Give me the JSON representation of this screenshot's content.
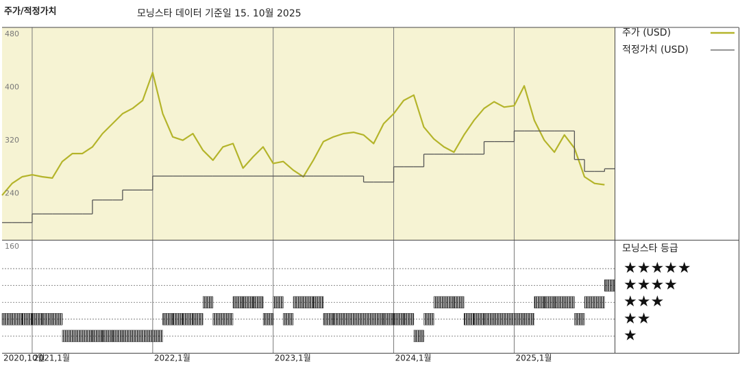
{
  "chart_data": [
    {
      "type": "line",
      "title": "주가/적정가치",
      "subtitle": "모닝스타 데이터 기준일 15. 10월 2025",
      "x": [
        "2020-10",
        "2020-11",
        "2020-12",
        "2021-01",
        "2021-02",
        "2021-03",
        "2021-04",
        "2021-05",
        "2021-06",
        "2021-07",
        "2021-08",
        "2021-09",
        "2021-10",
        "2021-11",
        "2021-12",
        "2022-01",
        "2022-02",
        "2022-03",
        "2022-04",
        "2022-05",
        "2022-06",
        "2022-07",
        "2022-08",
        "2022-09",
        "2022-10",
        "2022-11",
        "2022-12",
        "2023-01",
        "2023-02",
        "2023-03",
        "2023-04",
        "2023-05",
        "2023-06",
        "2023-07",
        "2023-08",
        "2023-09",
        "2023-10",
        "2023-11",
        "2023-12",
        "2024-01",
        "2024-02",
        "2024-03",
        "2024-04",
        "2024-05",
        "2024-06",
        "2024-07",
        "2024-08",
        "2024-09",
        "2024-10",
        "2024-11",
        "2024-12",
        "2025-01",
        "2025-02",
        "2025-03",
        "2025-04",
        "2025-05",
        "2025-06",
        "2025-07",
        "2025-08",
        "2025-09",
        "2025-10"
      ],
      "series": [
        {
          "name": "주가 (USD)",
          "color": "#b4b42a",
          "drawstyle": "line",
          "values": [
            227,
            245,
            255,
            258,
            255,
            253,
            278,
            290,
            290,
            300,
            320,
            335,
            350,
            358,
            370,
            412,
            350,
            315,
            310,
            320,
            295,
            280,
            300,
            305,
            268,
            285,
            300,
            275,
            278,
            265,
            255,
            280,
            308,
            315,
            320,
            322,
            318,
            305,
            335,
            350,
            370,
            378,
            330,
            312,
            300,
            292,
            318,
            340,
            358,
            368,
            360,
            362,
            392,
            340,
            310,
            292,
            318,
            298,
            255,
            245,
            243
          ]
        },
        {
          "name": "적정가치 (USD)",
          "color": "#555555",
          "drawstyle": "steps-post",
          "values": [
            186,
            186,
            186,
            199,
            199,
            199,
            199,
            199,
            199,
            220,
            220,
            220,
            235,
            235,
            235,
            256,
            256,
            256,
            256,
            256,
            256,
            256,
            256,
            256,
            256,
            256,
            256,
            256,
            256,
            256,
            256,
            256,
            256,
            256,
            256,
            256,
            247,
            247,
            247,
            270,
            270,
            270,
            289,
            289,
            289,
            289,
            289,
            289,
            308,
            308,
            308,
            324,
            324,
            324,
            324,
            324,
            324,
            281,
            263,
            263,
            267
          ]
        }
      ],
      "xlim": [
        "2020-10",
        "2025-11"
      ],
      "ylim": [
        160,
        480
      ],
      "yticks": [
        160,
        240,
        320,
        400,
        480
      ],
      "grid": true,
      "background": "#f6f3d3"
    },
    {
      "type": "rating",
      "title": "모닝스타 등급",
      "x": [
        "2020-10",
        "2020-11",
        "2020-12",
        "2021-01",
        "2021-02",
        "2021-03",
        "2021-04",
        "2021-05",
        "2021-06",
        "2021-07",
        "2021-08",
        "2021-09",
        "2021-10",
        "2021-11",
        "2021-12",
        "2022-01",
        "2022-02",
        "2022-03",
        "2022-04",
        "2022-05",
        "2022-06",
        "2022-07",
        "2022-08",
        "2022-09",
        "2022-10",
        "2022-11",
        "2022-12",
        "2023-01",
        "2023-02",
        "2023-03",
        "2023-04",
        "2023-05",
        "2023-06",
        "2023-07",
        "2023-08",
        "2023-09",
        "2023-10",
        "2023-11",
        "2023-12",
        "2024-01",
        "2024-02",
        "2024-03",
        "2024-04",
        "2024-05",
        "2024-06",
        "2024-07",
        "2024-08",
        "2024-09",
        "2024-10",
        "2024-11",
        "2024-12",
        "2025-01",
        "2025-02",
        "2025-03",
        "2025-04",
        "2025-05",
        "2025-06",
        "2025-07",
        "2025-08",
        "2025-09",
        "2025-10"
      ],
      "values": [
        2,
        2,
        2,
        2,
        2,
        2,
        1,
        1,
        1,
        1,
        1,
        1,
        1,
        1,
        1,
        1,
        2,
        2,
        2,
        2,
        3,
        2,
        2,
        3,
        3,
        3,
        2,
        3,
        2,
        3,
        3,
        3,
        2,
        2,
        2,
        2,
        2,
        2,
        2,
        2,
        2,
        1,
        2,
        3,
        3,
        3,
        2,
        2,
        2,
        2,
        2,
        2,
        2,
        3,
        3,
        3,
        3,
        2,
        3,
        3,
        4
      ],
      "color": "#111111",
      "xlim": [
        "2020-10",
        "2025-11"
      ],
      "xticks": [
        {
          "value": "2020-10",
          "label": "2020,10월"
        },
        {
          "value": "2021-01",
          "label": "2021,1월"
        },
        {
          "value": "2022-01",
          "label": "2022,1월"
        },
        {
          "value": "2023-01",
          "label": "2023,1월"
        },
        {
          "value": "2024-01",
          "label": "2024,1월"
        },
        {
          "value": "2025-01",
          "label": "2025,1월"
        }
      ],
      "ylim": [
        0,
        6.67
      ],
      "yticks": [
        {
          "value": 5,
          "label": "★★★★★"
        },
        {
          "value": 4,
          "label": "★★★★"
        },
        {
          "value": 3,
          "label": "★★★"
        },
        {
          "value": 2,
          "label": "★★"
        },
        {
          "value": 1,
          "label": "★"
        }
      ]
    }
  ]
}
